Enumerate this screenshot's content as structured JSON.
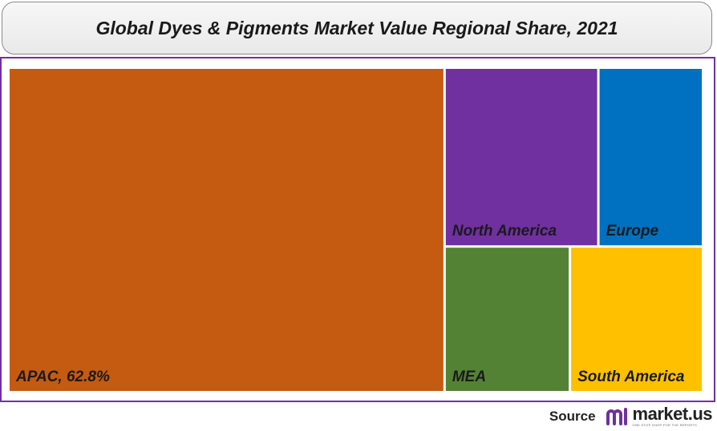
{
  "chart_data": {
    "type": "treemap",
    "title": "Global Dyes & Pigments Market Value Regional Share, 2021",
    "tiles": [
      {
        "name": "APAC",
        "label": "APAC, 62.8%",
        "value": 62.8,
        "color": "#c55a11"
      },
      {
        "name": "North America",
        "label": "North America",
        "value": 12.2,
        "color": "#7030a0"
      },
      {
        "name": "Europe",
        "label": "Europe",
        "value": 8.3,
        "color": "#0070c0"
      },
      {
        "name": "MEA",
        "label": "MEA",
        "value": 8.1,
        "color": "#548235"
      },
      {
        "name": "South America",
        "label": "South America",
        "value": 8.6,
        "color": "#ffc000"
      }
    ]
  },
  "footer": {
    "source_label": "Source",
    "logo_name": "market.us",
    "logo_tagline": "ONE STOP SHOP FOR THE REPORTS",
    "logo_icon": "market-us-logo-icon"
  },
  "colors": {
    "frame_border": "#7030a0",
    "logo_accent": "#7030a0"
  }
}
